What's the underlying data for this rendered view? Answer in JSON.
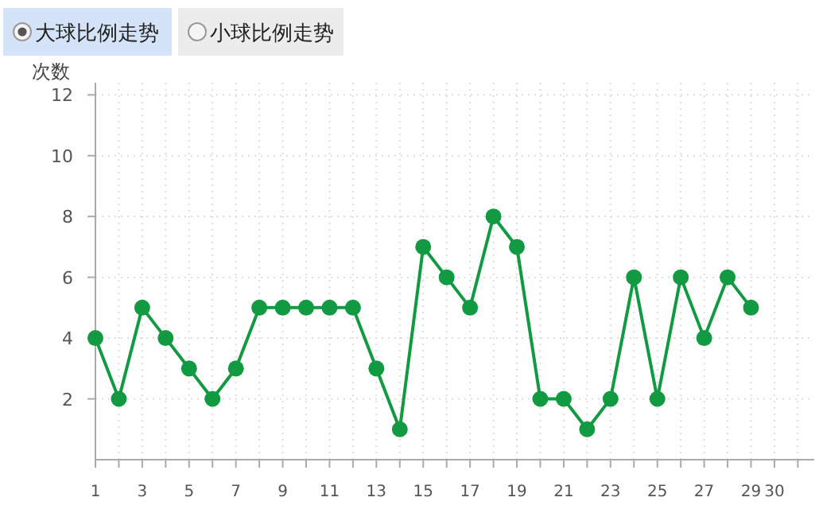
{
  "chart_data": {
    "type": "line",
    "ylabel": "次数",
    "annotations": [
      "大球比例走势",
      "小球比例走势"
    ],
    "x": [
      1,
      2,
      3,
      4,
      5,
      6,
      7,
      8,
      9,
      10,
      11,
      12,
      13,
      14,
      15,
      16,
      17,
      18,
      19,
      20,
      21,
      22,
      23,
      24,
      25,
      26,
      27,
      28,
      29
    ],
    "series": [
      {
        "color": "#129a43",
        "values": [
          4,
          2,
          5,
          4,
          3,
          2,
          3,
          5,
          5,
          5,
          5,
          5,
          3,
          1,
          7,
          6,
          5,
          8,
          7,
          2,
          2,
          1,
          2,
          6,
          2,
          6,
          4,
          6,
          5
        ]
      }
    ],
    "xlim": [
      1,
      31.7
    ],
    "ylim": [
      0,
      12.4
    ],
    "xticks": [
      1,
      {
        "value": 2,
        "label": null
      },
      3,
      {
        "value": 4,
        "label": null
      },
      5,
      {
        "value": 6,
        "label": null
      },
      7,
      {
        "value": 8,
        "label": null
      },
      9,
      {
        "value": 10,
        "label": null
      },
      11,
      {
        "value": 12,
        "label": null
      },
      13,
      {
        "value": 14,
        "label": null
      },
      15,
      {
        "value": 16,
        "label": null
      },
      17,
      {
        "value": 18,
        "label": null
      },
      19,
      {
        "value": 20,
        "label": null
      },
      21,
      {
        "value": 22,
        "label": null
      },
      23,
      {
        "value": 24,
        "label": null
      },
      25,
      {
        "value": 26,
        "label": null
      },
      27,
      {
        "value": 28,
        "label": null
      },
      29,
      30,
      {
        "value": 31,
        "label": null
      }
    ],
    "yticks": [
      2,
      4,
      6,
      8,
      10,
      12
    ],
    "grid": true,
    "marker": "circle",
    "line_style": "solid"
  }
}
